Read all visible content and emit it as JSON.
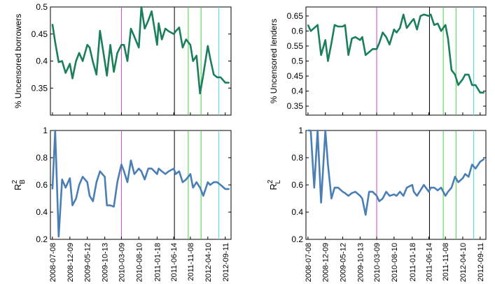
{
  "chart_data": [
    {
      "type": "line",
      "ylabel": "% Uncensored borrowers",
      "ylim": [
        0.3,
        0.5
      ],
      "yticks": [
        "0.35",
        "0.4",
        "0.45",
        "0.5"
      ],
      "ytick_values": [
        0.35,
        0.4,
        0.45,
        0.5
      ],
      "color": "#1a7f5a",
      "x": [
        "2008-07-08",
        "2008-08-01",
        "2008-09-01",
        "2008-10-01",
        "2008-11-01",
        "2008-12-09",
        "2009-01-01",
        "2009-02-01",
        "2009-03-01",
        "2009-04-01",
        "2009-05-12",
        "2009-06-01",
        "2009-07-01",
        "2009-08-01",
        "2009-09-01",
        "2009-10-13",
        "2009-11-01",
        "2009-12-01",
        "2010-01-01",
        "2010-02-01",
        "2010-03-09",
        "2010-04-01",
        "2010-05-01",
        "2010-06-01",
        "2010-07-01",
        "2010-08-10",
        "2010-09-01",
        "2010-10-01",
        "2010-11-01",
        "2010-12-01",
        "2011-01-18",
        "2011-02-01",
        "2011-03-01",
        "2011-04-01",
        "2011-05-01",
        "2011-06-14",
        "2011-07-01",
        "2011-08-01",
        "2011-09-01",
        "2011-10-01",
        "2011-11-08",
        "2011-12-01",
        "2012-01-01",
        "2012-02-01",
        "2012-03-01",
        "2012-04-10",
        "2012-05-01",
        "2012-06-01",
        "2012-07-01",
        "2012-08-01",
        "2012-09-11",
        "2012-10-15"
      ],
      "values": [
        0.468,
        0.435,
        0.398,
        0.4,
        0.378,
        0.395,
        0.368,
        0.4,
        0.415,
        0.4,
        0.43,
        0.425,
        0.398,
        0.375,
        0.456,
        0.4,
        0.373,
        0.43,
        0.38,
        0.415,
        0.43,
        0.43,
        0.4,
        0.46,
        0.445,
        0.425,
        0.5,
        0.46,
        0.475,
        0.492,
        0.43,
        0.47,
        0.44,
        0.46,
        0.455,
        0.45,
        0.455,
        0.462,
        0.425,
        0.44,
        0.43,
        0.4,
        0.41,
        0.34,
        0.375,
        0.428,
        0.405,
        0.375,
        0.37,
        0.37,
        0.36,
        0.36
      ],
      "vlines": [
        {
          "x": "2010-03-09",
          "color": "#cc44cc"
        },
        {
          "x": "2011-06-20",
          "color": "#000000"
        },
        {
          "x": "2011-10-20",
          "color": "#44cc44"
        },
        {
          "x": "2012-02-10",
          "color": "#44cc44"
        },
        {
          "x": "2012-07-15",
          "color": "#44dddd"
        }
      ]
    },
    {
      "type": "line",
      "ylabel": "% Uncensored lenders",
      "ylim": [
        0.32,
        0.68
      ],
      "yticks": [
        "0.35",
        "0.4",
        "0.45",
        "0.5",
        "0.55",
        "0.6",
        "0.65"
      ],
      "ytick_values": [
        0.35,
        0.4,
        0.45,
        0.5,
        0.55,
        0.6,
        0.65
      ],
      "color": "#1a7f5a",
      "x": [
        "2008-07-08",
        "2008-08-01",
        "2008-09-01",
        "2008-10-01",
        "2008-11-01",
        "2008-12-09",
        "2009-01-01",
        "2009-02-01",
        "2009-03-01",
        "2009-04-01",
        "2009-05-12",
        "2009-06-01",
        "2009-07-01",
        "2009-08-01",
        "2009-09-01",
        "2009-10-13",
        "2009-11-01",
        "2009-12-01",
        "2010-01-01",
        "2010-02-01",
        "2010-03-09",
        "2010-04-01",
        "2010-05-01",
        "2010-06-01",
        "2010-07-01",
        "2010-08-10",
        "2010-09-01",
        "2010-10-01",
        "2010-11-01",
        "2010-12-01",
        "2011-01-18",
        "2011-02-01",
        "2011-03-01",
        "2011-04-01",
        "2011-05-01",
        "2011-06-14",
        "2011-07-01",
        "2011-08-01",
        "2011-09-01",
        "2011-10-01",
        "2011-11-08",
        "2011-12-01",
        "2012-01-01",
        "2012-02-01",
        "2012-03-01",
        "2012-04-10",
        "2012-05-01",
        "2012-06-01",
        "2012-07-01",
        "2012-08-01",
        "2012-09-11",
        "2012-10-15"
      ],
      "values": [
        0.62,
        0.6,
        0.61,
        0.62,
        0.52,
        0.57,
        0.5,
        0.56,
        0.62,
        0.615,
        0.615,
        0.62,
        0.52,
        0.575,
        0.58,
        0.57,
        0.58,
        0.52,
        0.53,
        0.54,
        0.54,
        0.56,
        0.595,
        0.58,
        0.555,
        0.605,
        0.595,
        0.61,
        0.655,
        0.61,
        0.635,
        0.64,
        0.605,
        0.65,
        0.655,
        0.65,
        0.655,
        0.62,
        0.625,
        0.6,
        0.62,
        0.575,
        0.47,
        0.455,
        0.42,
        0.44,
        0.455,
        0.455,
        0.42,
        0.42,
        0.395,
        0.395
      ],
      "vlines": [
        {
          "x": "2010-03-09",
          "color": "#cc44cc"
        },
        {
          "x": "2011-06-20",
          "color": "#000000"
        },
        {
          "x": "2011-10-20",
          "color": "#44cc44"
        },
        {
          "x": "2012-02-10",
          "color": "#44cc44"
        },
        {
          "x": "2012-07-15",
          "color": "#44dddd"
        }
      ]
    },
    {
      "type": "line",
      "ylabel": "R",
      "ylabel_sup": "2",
      "ylabel_sub": "B",
      "ylim": [
        0.2,
        1.0
      ],
      "yticks": [
        "0.2",
        "0.4",
        "0.6",
        "0.8",
        "1"
      ],
      "ytick_values": [
        0.2,
        0.4,
        0.6,
        0.8,
        1.0
      ],
      "color": "#4a7fb5",
      "x": [
        "2008-07-08",
        "2008-08-01",
        "2008-09-01",
        "2008-10-01",
        "2008-11-01",
        "2008-12-09",
        "2009-01-01",
        "2009-02-01",
        "2009-03-01",
        "2009-04-01",
        "2009-05-12",
        "2009-06-01",
        "2009-07-01",
        "2009-08-01",
        "2009-09-01",
        "2009-10-13",
        "2009-11-01",
        "2009-12-01",
        "2010-01-01",
        "2010-02-01",
        "2010-03-09",
        "2010-04-01",
        "2010-05-01",
        "2010-06-01",
        "2010-07-01",
        "2010-08-10",
        "2010-09-01",
        "2010-10-01",
        "2010-11-01",
        "2010-12-01",
        "2011-01-18",
        "2011-02-01",
        "2011-03-01",
        "2011-04-01",
        "2011-05-01",
        "2011-06-14",
        "2011-07-01",
        "2011-08-01",
        "2011-09-01",
        "2011-10-01",
        "2011-11-08",
        "2011-12-01",
        "2012-01-01",
        "2012-02-01",
        "2012-03-01",
        "2012-04-10",
        "2012-05-01",
        "2012-06-01",
        "2012-07-01",
        "2012-08-01",
        "2012-09-11",
        "2012-10-15"
      ],
      "values": [
        0.57,
        1.0,
        0.22,
        0.64,
        0.58,
        0.65,
        0.45,
        0.5,
        0.6,
        0.66,
        0.62,
        0.52,
        0.48,
        0.62,
        0.7,
        0.66,
        0.45,
        0.45,
        0.44,
        0.62,
        0.75,
        0.7,
        0.62,
        0.78,
        0.68,
        0.72,
        0.7,
        0.64,
        0.72,
        0.72,
        0.68,
        0.72,
        0.7,
        0.68,
        0.7,
        0.72,
        0.68,
        0.7,
        0.62,
        0.64,
        0.68,
        0.58,
        0.62,
        0.58,
        0.52,
        0.62,
        0.6,
        0.62,
        0.62,
        0.6,
        0.57,
        0.57
      ],
      "vlines": [
        {
          "x": "2010-03-09",
          "color": "#cc44cc"
        },
        {
          "x": "2011-06-20",
          "color": "#000000"
        },
        {
          "x": "2011-10-20",
          "color": "#44cc44"
        },
        {
          "x": "2012-02-10",
          "color": "#44cc44"
        },
        {
          "x": "2012-07-15",
          "color": "#44dddd"
        }
      ]
    },
    {
      "type": "line",
      "ylabel": "R",
      "ylabel_sup": "2",
      "ylabel_sub": "L",
      "ylim": [
        0.2,
        1.0
      ],
      "yticks": [
        "0.2",
        "0.4",
        "0.6",
        "0.8",
        "1"
      ],
      "ytick_values": [
        0.2,
        0.4,
        0.6,
        0.8,
        1.0
      ],
      "color": "#4a7fb5",
      "x": [
        "2008-07-08",
        "2008-08-01",
        "2008-09-01",
        "2008-10-01",
        "2008-11-01",
        "2008-12-09",
        "2009-01-01",
        "2009-02-01",
        "2009-03-01",
        "2009-04-01",
        "2009-05-12",
        "2009-06-01",
        "2009-07-01",
        "2009-08-01",
        "2009-09-01",
        "2009-10-13",
        "2009-11-01",
        "2009-12-01",
        "2010-01-01",
        "2010-02-01",
        "2010-03-09",
        "2010-04-01",
        "2010-05-01",
        "2010-06-01",
        "2010-07-01",
        "2010-08-10",
        "2010-09-01",
        "2010-10-01",
        "2010-11-01",
        "2010-12-01",
        "2011-01-18",
        "2011-02-01",
        "2011-03-01",
        "2011-04-01",
        "2011-05-01",
        "2011-06-14",
        "2011-07-01",
        "2011-08-01",
        "2011-09-01",
        "2011-10-01",
        "2011-11-08",
        "2011-12-01",
        "2012-01-01",
        "2012-02-01",
        "2012-03-01",
        "2012-04-10",
        "2012-05-01",
        "2012-06-01",
        "2012-07-01",
        "2012-08-01",
        "2012-09-11",
        "2012-10-15"
      ],
      "values": [
        1.0,
        1.0,
        0.58,
        1.0,
        0.47,
        1.0,
        0.75,
        0.5,
        0.58,
        0.58,
        0.55,
        0.54,
        0.52,
        0.54,
        0.55,
        0.52,
        0.5,
        0.38,
        0.55,
        0.55,
        0.52,
        0.48,
        0.5,
        0.55,
        0.52,
        0.53,
        0.52,
        0.55,
        0.52,
        0.58,
        0.6,
        0.55,
        0.52,
        0.56,
        0.6,
        0.55,
        0.58,
        0.58,
        0.56,
        0.58,
        0.52,
        0.55,
        0.58,
        0.66,
        0.62,
        0.65,
        0.68,
        0.66,
        0.75,
        0.72,
        0.77,
        0.79
      ],
      "vlines": [
        {
          "x": "2010-03-09",
          "color": "#cc44cc"
        },
        {
          "x": "2011-06-20",
          "color": "#000000"
        },
        {
          "x": "2011-10-20",
          "color": "#44cc44"
        },
        {
          "x": "2012-02-10",
          "color": "#44cc44"
        },
        {
          "x": "2012-07-15",
          "color": "#44dddd"
        }
      ]
    }
  ],
  "x_tick_dates": [
    "2008-07-08",
    "2008-12-09",
    "2009-05-12",
    "2009-10-13",
    "2010-03-09",
    "2010-08-10",
    "2011-01-18",
    "2011-06-14",
    "2011-11-08",
    "2012-04-10",
    "2012-09-11"
  ],
  "x_range": [
    "2008-06-20",
    "2012-11-01"
  ]
}
